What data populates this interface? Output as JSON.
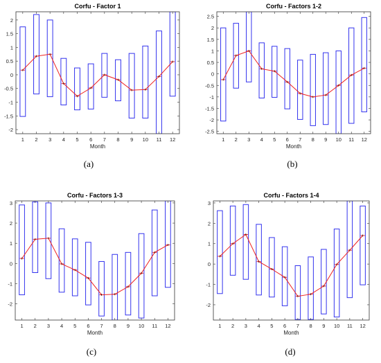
{
  "chart_data": [
    {
      "type": "boxplot",
      "title": "Corfu - Factor 1",
      "xlabel": "Month",
      "ylabel": "",
      "caption": "(a)",
      "categories": [
        "1",
        "2",
        "3",
        "4",
        "5",
        "6",
        "7",
        "8",
        "9",
        "10",
        "11",
        "12"
      ],
      "ylim": [
        -2.15,
        2.3
      ],
      "yticks": [
        -2,
        -1.5,
        -1,
        -0.5,
        0,
        0.5,
        1,
        1.5,
        2
      ],
      "ytick_labels": [
        "-2",
        "-1.5",
        "-1",
        "-0.5",
        "0",
        "0.5",
        "1",
        "1.5",
        "2"
      ],
      "box_low": [
        -1.52,
        -0.7,
        -0.8,
        -1.1,
        -1.28,
        -1.25,
        -0.82,
        -0.95,
        -1.58,
        -1.58,
        -2.15,
        -0.78
      ],
      "box_high": [
        1.75,
        2.2,
        2.0,
        0.6,
        0.25,
        0.4,
        0.78,
        0.55,
        0.78,
        1.05,
        1.6,
        2.3
      ],
      "medians": [
        0.17,
        0.68,
        0.75,
        -0.32,
        -0.78,
        -0.48,
        0.0,
        -0.18,
        -0.56,
        -0.54,
        -0.06,
        0.48
      ],
      "colors": {
        "box": "#3333ee",
        "line": "#ee2222"
      }
    },
    {
      "type": "boxplot",
      "title": "Corfu - Factors 1-2",
      "xlabel": "Month",
      "ylabel": "",
      "caption": "(b)",
      "categories": [
        "1",
        "2",
        "3",
        "4",
        "5",
        "6",
        "7",
        "8",
        "9",
        "10",
        "11",
        "12"
      ],
      "ylim": [
        -2.6,
        2.7
      ],
      "yticks": [
        -2.5,
        -2,
        -1.5,
        -1,
        -0.5,
        0,
        0.5,
        1,
        1.5,
        2,
        2.5
      ],
      "ytick_labels": [
        "-2.5",
        "-2",
        "-1.5",
        "-1",
        "-0.5",
        "0",
        "0.5",
        "1",
        "1.5",
        "2",
        "2.5"
      ],
      "box_low": [
        -2.05,
        -0.62,
        -0.35,
        -1.05,
        -1.02,
        -1.52,
        -1.98,
        -2.25,
        -2.2,
        -2.6,
        -2.15,
        -1.65
      ],
      "box_high": [
        2.0,
        2.2,
        2.7,
        1.35,
        1.2,
        1.1,
        0.6,
        0.85,
        0.92,
        1.0,
        2.0,
        2.45
      ],
      "medians": [
        -0.25,
        0.8,
        1.0,
        0.22,
        0.12,
        -0.35,
        -0.85,
        -1.0,
        -0.92,
        -0.5,
        -0.05,
        0.25
      ],
      "colors": {
        "box": "#3333ee",
        "line": "#ee2222"
      }
    },
    {
      "type": "boxplot",
      "title": "Corfu - Factors 1-3",
      "xlabel": "Month",
      "ylabel": "",
      "caption": "(c)",
      "categories": [
        "1",
        "2",
        "3",
        "4",
        "5",
        "6",
        "7",
        "8",
        "9",
        "10",
        "11",
        "12"
      ],
      "ylim": [
        -2.8,
        3.1
      ],
      "yticks": [
        -2,
        -1,
        0,
        1,
        2,
        3
      ],
      "ytick_labels": [
        "-2",
        "-1",
        "0",
        "1",
        "2",
        "3"
      ],
      "box_low": [
        -1.55,
        -0.45,
        -0.75,
        -1.42,
        -1.6,
        -2.05,
        -2.6,
        -2.8,
        -2.55,
        -2.7,
        -1.6,
        -1.18
      ],
      "box_high": [
        2.9,
        3.05,
        3.0,
        1.72,
        1.22,
        1.05,
        0.1,
        0.45,
        0.55,
        1.48,
        2.65,
        3.1
      ],
      "medians": [
        0.25,
        1.2,
        1.25,
        -0.02,
        -0.32,
        -0.72,
        -1.55,
        -1.52,
        -1.15,
        -0.48,
        0.55,
        0.92
      ],
      "colors": {
        "box": "#3333ee",
        "line": "#ee2222"
      }
    },
    {
      "type": "boxplot",
      "title": "Corfu - Factors 1-4",
      "xlabel": "Month",
      "ylabel": "",
      "caption": "(d)",
      "categories": [
        "1",
        "2",
        "3",
        "4",
        "5",
        "6",
        "7",
        "8",
        "9",
        "10",
        "11",
        "12"
      ],
      "ylim": [
        -2.75,
        3.1
      ],
      "yticks": [
        -2,
        -1,
        0,
        1,
        2,
        3
      ],
      "ytick_labels": [
        "-2",
        "-1",
        "0",
        "1",
        "2",
        "3"
      ],
      "box_low": [
        -1.45,
        -0.55,
        -0.75,
        -1.52,
        -1.62,
        -2.05,
        -2.72,
        -2.72,
        -2.45,
        -2.6,
        -1.65,
        -1.02
      ],
      "box_high": [
        2.62,
        2.85,
        2.92,
        1.95,
        1.3,
        0.85,
        -0.08,
        0.35,
        0.72,
        1.72,
        3.1,
        2.85
      ],
      "medians": [
        0.38,
        1.0,
        1.45,
        0.12,
        -0.25,
        -0.65,
        -1.58,
        -1.48,
        -1.08,
        -0.02,
        0.68,
        1.4
      ],
      "colors": {
        "box": "#3333ee",
        "line": "#ee2222"
      }
    }
  ]
}
